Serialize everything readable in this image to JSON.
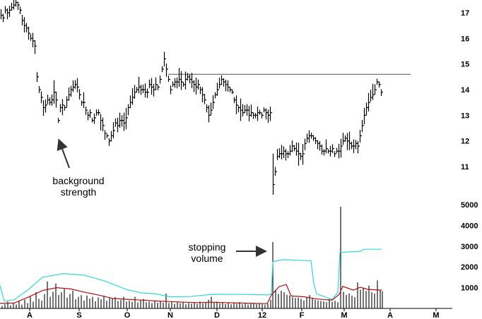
{
  "chart_data": {
    "type": "bar",
    "price_axis": {
      "ticks": [
        "17",
        "16",
        "15",
        "14",
        "13",
        "12",
        "11"
      ],
      "range": [
        10.0,
        17.6
      ]
    },
    "volume_axis": {
      "ticks": [
        "5000",
        "4000",
        "3000",
        "2000",
        "1000"
      ],
      "range": [
        0,
        5800
      ]
    },
    "months": [
      "A",
      "S",
      "O",
      "N",
      "D",
      "12",
      "F",
      "M",
      "A",
      "M"
    ],
    "resistance_level": 14.6,
    "annotations": [
      {
        "lines": [
          "background",
          "strength"
        ]
      },
      {
        "lines": [
          "stopping",
          "volume"
        ]
      }
    ],
    "colors": {
      "price_bars": "#000000",
      "volume_bars": "#000000",
      "long_volume_average": "#33d6d6",
      "short_volume_average": "#b01010",
      "resistance_line": "#555555",
      "arrows": "#333333"
    },
    "price_segments": [
      [
        [
          0,
          16.9
        ],
        [
          3,
          16.8
        ],
        [
          6,
          17.1
        ],
        [
          9,
          17.0
        ],
        [
          12,
          17.1
        ],
        [
          15,
          17.2
        ],
        [
          18,
          17.3
        ],
        [
          21,
          17.4
        ],
        [
          24,
          17.3
        ],
        [
          27,
          17.1
        ],
        [
          30,
          16.7
        ],
        [
          33,
          16.5
        ],
        [
          36,
          16.4
        ],
        [
          39,
          16.2
        ],
        [
          42,
          16.0
        ],
        [
          45,
          15.9
        ],
        [
          48,
          15.7
        ],
        [
          51,
          14.5
        ],
        [
          54,
          14.0
        ],
        [
          57,
          13.7
        ],
        [
          60,
          13.3
        ],
        [
          63,
          13.4
        ],
        [
          66,
          13.6
        ],
        [
          69,
          13.5
        ],
        [
          72,
          13.6
        ],
        [
          75,
          13.9
        ],
        [
          78,
          13.6
        ],
        [
          81,
          12.8
        ],
        [
          84,
          13.3
        ],
        [
          87,
          13.4
        ],
        [
          90,
          13.3
        ],
        [
          93,
          13.6
        ],
        [
          96,
          13.8
        ],
        [
          99,
          14.0
        ],
        [
          102,
          14.1
        ],
        [
          105,
          14.2
        ],
        [
          108,
          14.1
        ],
        [
          111,
          13.8
        ],
        [
          114,
          13.5
        ],
        [
          117,
          13.5
        ],
        [
          120,
          13.2
        ],
        [
          123,
          13.0
        ],
        [
          126,
          13.1
        ],
        [
          129,
          12.8
        ],
        [
          132,
          12.9
        ],
        [
          135,
          13.1
        ],
        [
          138,
          13.1
        ],
        [
          141,
          12.8
        ],
        [
          144,
          12.6
        ],
        [
          147,
          12.3
        ],
        [
          150,
          12.2
        ],
        [
          153,
          12.0
        ],
        [
          156,
          12.2
        ],
        [
          159,
          12.4
        ],
        [
          162,
          12.7
        ],
        [
          165,
          12.6
        ],
        [
          168,
          12.8
        ],
        [
          171,
          12.8
        ],
        [
          174,
          12.7
        ],
        [
          177,
          12.9
        ],
        [
          180,
          13.3
        ],
        [
          183,
          13.5
        ],
        [
          186,
          13.7
        ],
        [
          189,
          13.9
        ],
        [
          192,
          14.0
        ],
        [
          195,
          14.1
        ],
        [
          198,
          14.0
        ],
        [
          201,
          14.0
        ],
        [
          204,
          13.9
        ],
        [
          207,
          13.9
        ],
        [
          210,
          14.2
        ],
        [
          213,
          14.1
        ],
        [
          216,
          14.0
        ],
        [
          219,
          14.2
        ],
        [
          222,
          14.1
        ],
        [
          225,
          14.4
        ],
        [
          228,
          14.8
        ],
        [
          231,
          15.2
        ],
        [
          234,
          14.8
        ],
        [
          237,
          14.4
        ],
        [
          240,
          14.0
        ],
        [
          243,
          14.2
        ],
        [
          246,
          14.3
        ],
        [
          249,
          14.3
        ],
        [
          252,
          14.4
        ],
        [
          255,
          14.3
        ],
        [
          258,
          14.2
        ],
        [
          261,
          14.4
        ],
        [
          264,
          14.5
        ],
        [
          267,
          14.4
        ],
        [
          270,
          14.3
        ],
        [
          273,
          14.2
        ],
        [
          276,
          14.1
        ],
        [
          279,
          14.2
        ],
        [
          282,
          14.0
        ],
        [
          285,
          13.8
        ],
        [
          288,
          13.6
        ],
        [
          291,
          13.3
        ],
        [
          294,
          13.0
        ],
        [
          297,
          13.2
        ],
        [
          300,
          13.5
        ],
        [
          303,
          13.8
        ],
        [
          306,
          14.0
        ],
        [
          309,
          14.2
        ],
        [
          312,
          14.4
        ],
        [
          315,
          14.3
        ],
        [
          318,
          14.2
        ],
        [
          321,
          14.1
        ],
        [
          324,
          14.0
        ],
        [
          327,
          13.9
        ],
        [
          330,
          13.6
        ],
        [
          333,
          13.4
        ],
        [
          336,
          13.3
        ],
        [
          339,
          13.2
        ],
        [
          342,
          13.1
        ],
        [
          345,
          13.2
        ],
        [
          348,
          13.2
        ],
        [
          351,
          13.0
        ],
        [
          354,
          13.1
        ],
        [
          357,
          13.0
        ],
        [
          360,
          13.0
        ],
        [
          363,
          13.1
        ],
        [
          366,
          13.1
        ],
        [
          369,
          13.0
        ],
        [
          372,
          13.2
        ],
        [
          375,
          13.1
        ],
        [
          378,
          13.0
        ],
        [
          381,
          13.1
        ]
      ],
      [
        [
          385,
          10.3
        ],
        [
          388,
          10.8
        ],
        [
          391,
          11.4
        ],
        [
          394,
          11.5
        ],
        [
          397,
          11.5
        ],
        [
          400,
          11.6
        ],
        [
          403,
          11.5
        ],
        [
          406,
          11.5
        ],
        [
          409,
          11.6
        ],
        [
          412,
          11.8
        ],
        [
          415,
          11.7
        ],
        [
          418,
          11.6
        ],
        [
          421,
          11.5
        ],
        [
          424,
          11.4
        ],
        [
          427,
          11.5
        ],
        [
          430,
          11.9
        ],
        [
          433,
          12.1
        ],
        [
          436,
          12.2
        ],
        [
          439,
          12.2
        ],
        [
          442,
          12.1
        ],
        [
          445,
          12.0
        ],
        [
          448,
          11.9
        ],
        [
          451,
          11.8
        ],
        [
          454,
          11.6
        ],
        [
          457,
          11.6
        ],
        [
          460,
          11.7
        ],
        [
          463,
          11.6
        ],
        [
          466,
          11.6
        ],
        [
          469,
          11.7
        ],
        [
          472,
          11.5
        ],
        [
          475,
          11.6
        ],
        [
          478,
          11.6
        ],
        [
          481,
          11.8
        ],
        [
          484,
          12.0
        ],
        [
          487,
          12.1
        ],
        [
          490,
          12.0
        ],
        [
          493,
          11.9
        ],
        [
          496,
          11.8
        ],
        [
          499,
          11.8
        ],
        [
          502,
          11.9
        ],
        [
          505,
          11.8
        ],
        [
          508,
          12.2
        ],
        [
          511,
          12.6
        ],
        [
          514,
          13.0
        ],
        [
          517,
          13.3
        ],
        [
          520,
          13.5
        ],
        [
          523,
          13.7
        ],
        [
          526,
          13.8
        ],
        [
          529,
          14.0
        ],
        [
          532,
          14.3
        ],
        [
          535,
          14.2
        ],
        [
          538,
          13.9
        ]
      ]
    ],
    "volume_bars": [
      [
        2,
        120
      ],
      [
        6,
        200
      ],
      [
        10,
        330
      ],
      [
        14,
        150
      ],
      [
        18,
        260
      ],
      [
        22,
        190
      ],
      [
        26,
        350
      ],
      [
        30,
        180
      ],
      [
        34,
        420
      ],
      [
        38,
        260
      ],
      [
        42,
        560
      ],
      [
        46,
        330
      ],
      [
        50,
        780
      ],
      [
        54,
        460
      ],
      [
        58,
        380
      ],
      [
        62,
        690
      ],
      [
        66,
        1300
      ],
      [
        70,
        560
      ],
      [
        74,
        800
      ],
      [
        78,
        1200
      ],
      [
        82,
        650
      ],
      [
        86,
        780
      ],
      [
        90,
        930
      ],
      [
        94,
        520
      ],
      [
        98,
        700
      ],
      [
        102,
        860
      ],
      [
        106,
        440
      ],
      [
        110,
        560
      ],
      [
        114,
        640
      ],
      [
        118,
        380
      ],
      [
        122,
        620
      ],
      [
        126,
        470
      ],
      [
        130,
        560
      ],
      [
        134,
        340
      ],
      [
        138,
        530
      ],
      [
        142,
        450
      ],
      [
        146,
        620
      ],
      [
        150,
        370
      ],
      [
        154,
        500
      ],
      [
        158,
        470
      ],
      [
        162,
        540
      ],
      [
        166,
        360
      ],
      [
        170,
        410
      ],
      [
        174,
        560
      ],
      [
        178,
        330
      ],
      [
        182,
        380
      ],
      [
        186,
        320
      ],
      [
        190,
        560
      ],
      [
        194,
        290
      ],
      [
        198,
        410
      ],
      [
        202,
        460
      ],
      [
        206,
        300
      ],
      [
        210,
        330
      ],
      [
        214,
        260
      ],
      [
        218,
        380
      ],
      [
        222,
        270
      ],
      [
        226,
        340
      ],
      [
        230,
        280
      ],
      [
        234,
        720
      ],
      [
        238,
        260
      ],
      [
        242,
        330
      ],
      [
        246,
        220
      ],
      [
        250,
        300
      ],
      [
        254,
        250
      ],
      [
        258,
        310
      ],
      [
        262,
        200
      ],
      [
        266,
        260
      ],
      [
        270,
        230
      ],
      [
        274,
        280
      ],
      [
        278,
        220
      ],
      [
        282,
        330
      ],
      [
        286,
        250
      ],
      [
        290,
        300
      ],
      [
        294,
        420
      ],
      [
        298,
        560
      ],
      [
        302,
        280
      ],
      [
        306,
        330
      ],
      [
        310,
        250
      ],
      [
        314,
        290
      ],
      [
        318,
        220
      ],
      [
        322,
        280
      ],
      [
        326,
        200
      ],
      [
        330,
        260
      ],
      [
        334,
        220
      ],
      [
        338,
        300
      ],
      [
        342,
        200
      ],
      [
        346,
        240
      ],
      [
        350,
        190
      ],
      [
        354,
        220
      ],
      [
        358,
        260
      ],
      [
        362,
        200
      ],
      [
        366,
        240
      ],
      [
        370,
        210
      ],
      [
        374,
        180
      ],
      [
        378,
        230
      ],
      [
        382,
        420
      ],
      [
        385,
        3200
      ],
      [
        389,
        900
      ],
      [
        393,
        700
      ],
      [
        397,
        850
      ],
      [
        401,
        780
      ],
      [
        405,
        660
      ],
      [
        409,
        620
      ],
      [
        413,
        540
      ],
      [
        417,
        500
      ],
      [
        421,
        520
      ],
      [
        425,
        460
      ],
      [
        429,
        380
      ],
      [
        433,
        560
      ],
      [
        437,
        640
      ],
      [
        441,
        480
      ],
      [
        445,
        420
      ],
      [
        449,
        380
      ],
      [
        453,
        360
      ],
      [
        457,
        340
      ],
      [
        461,
        300
      ],
      [
        465,
        450
      ],
      [
        469,
        320
      ],
      [
        473,
        370
      ],
      [
        477,
        300
      ],
      [
        481,
        4900
      ],
      [
        485,
        800
      ],
      [
        489,
        650
      ],
      [
        493,
        720
      ],
      [
        497,
        620
      ],
      [
        501,
        540
      ],
      [
        505,
        1250
      ],
      [
        509,
        900
      ],
      [
        513,
        1000
      ],
      [
        517,
        840
      ],
      [
        521,
        1100
      ],
      [
        525,
        780
      ],
      [
        529,
        720
      ],
      [
        533,
        1350
      ],
      [
        537,
        900
      ],
      [
        540,
        830
      ]
    ],
    "long_volume_average": [
      [
        0,
        1100
      ],
      [
        6,
        350
      ],
      [
        20,
        420
      ],
      [
        40,
        900
      ],
      [
        60,
        1500
      ],
      [
        90,
        1680
      ],
      [
        120,
        1600
      ],
      [
        150,
        1300
      ],
      [
        180,
        900
      ],
      [
        200,
        750
      ],
      [
        220,
        700
      ],
      [
        240,
        560
      ],
      [
        270,
        570
      ],
      [
        300,
        680
      ],
      [
        350,
        670
      ],
      [
        378,
        650
      ],
      [
        384,
        700
      ],
      [
        386,
        2250
      ],
      [
        400,
        2350
      ],
      [
        440,
        2300
      ],
      [
        444,
        1200
      ],
      [
        448,
        700
      ],
      [
        470,
        430
      ],
      [
        478,
        780
      ],
      [
        481,
        2700
      ],
      [
        510,
        2750
      ],
      [
        515,
        2850
      ],
      [
        540,
        2850
      ]
    ],
    "short_volume_average": [
      [
        0,
        240
      ],
      [
        20,
        260
      ],
      [
        40,
        540
      ],
      [
        60,
        860
      ],
      [
        80,
        1000
      ],
      [
        100,
        940
      ],
      [
        120,
        780
      ],
      [
        140,
        640
      ],
      [
        160,
        480
      ],
      [
        180,
        440
      ],
      [
        200,
        400
      ],
      [
        220,
        360
      ],
      [
        240,
        330
      ],
      [
        260,
        300
      ],
      [
        280,
        280
      ],
      [
        300,
        300
      ],
      [
        320,
        280
      ],
      [
        340,
        260
      ],
      [
        360,
        240
      ],
      [
        378,
        230
      ],
      [
        384,
        650
      ],
      [
        395,
        1050
      ],
      [
        405,
        1150
      ],
      [
        412,
        600
      ],
      [
        430,
        560
      ],
      [
        450,
        450
      ],
      [
        470,
        400
      ],
      [
        480,
        680
      ],
      [
        485,
        1060
      ],
      [
        500,
        880
      ],
      [
        510,
        1020
      ],
      [
        520,
        920
      ],
      [
        540,
        880
      ]
    ]
  }
}
